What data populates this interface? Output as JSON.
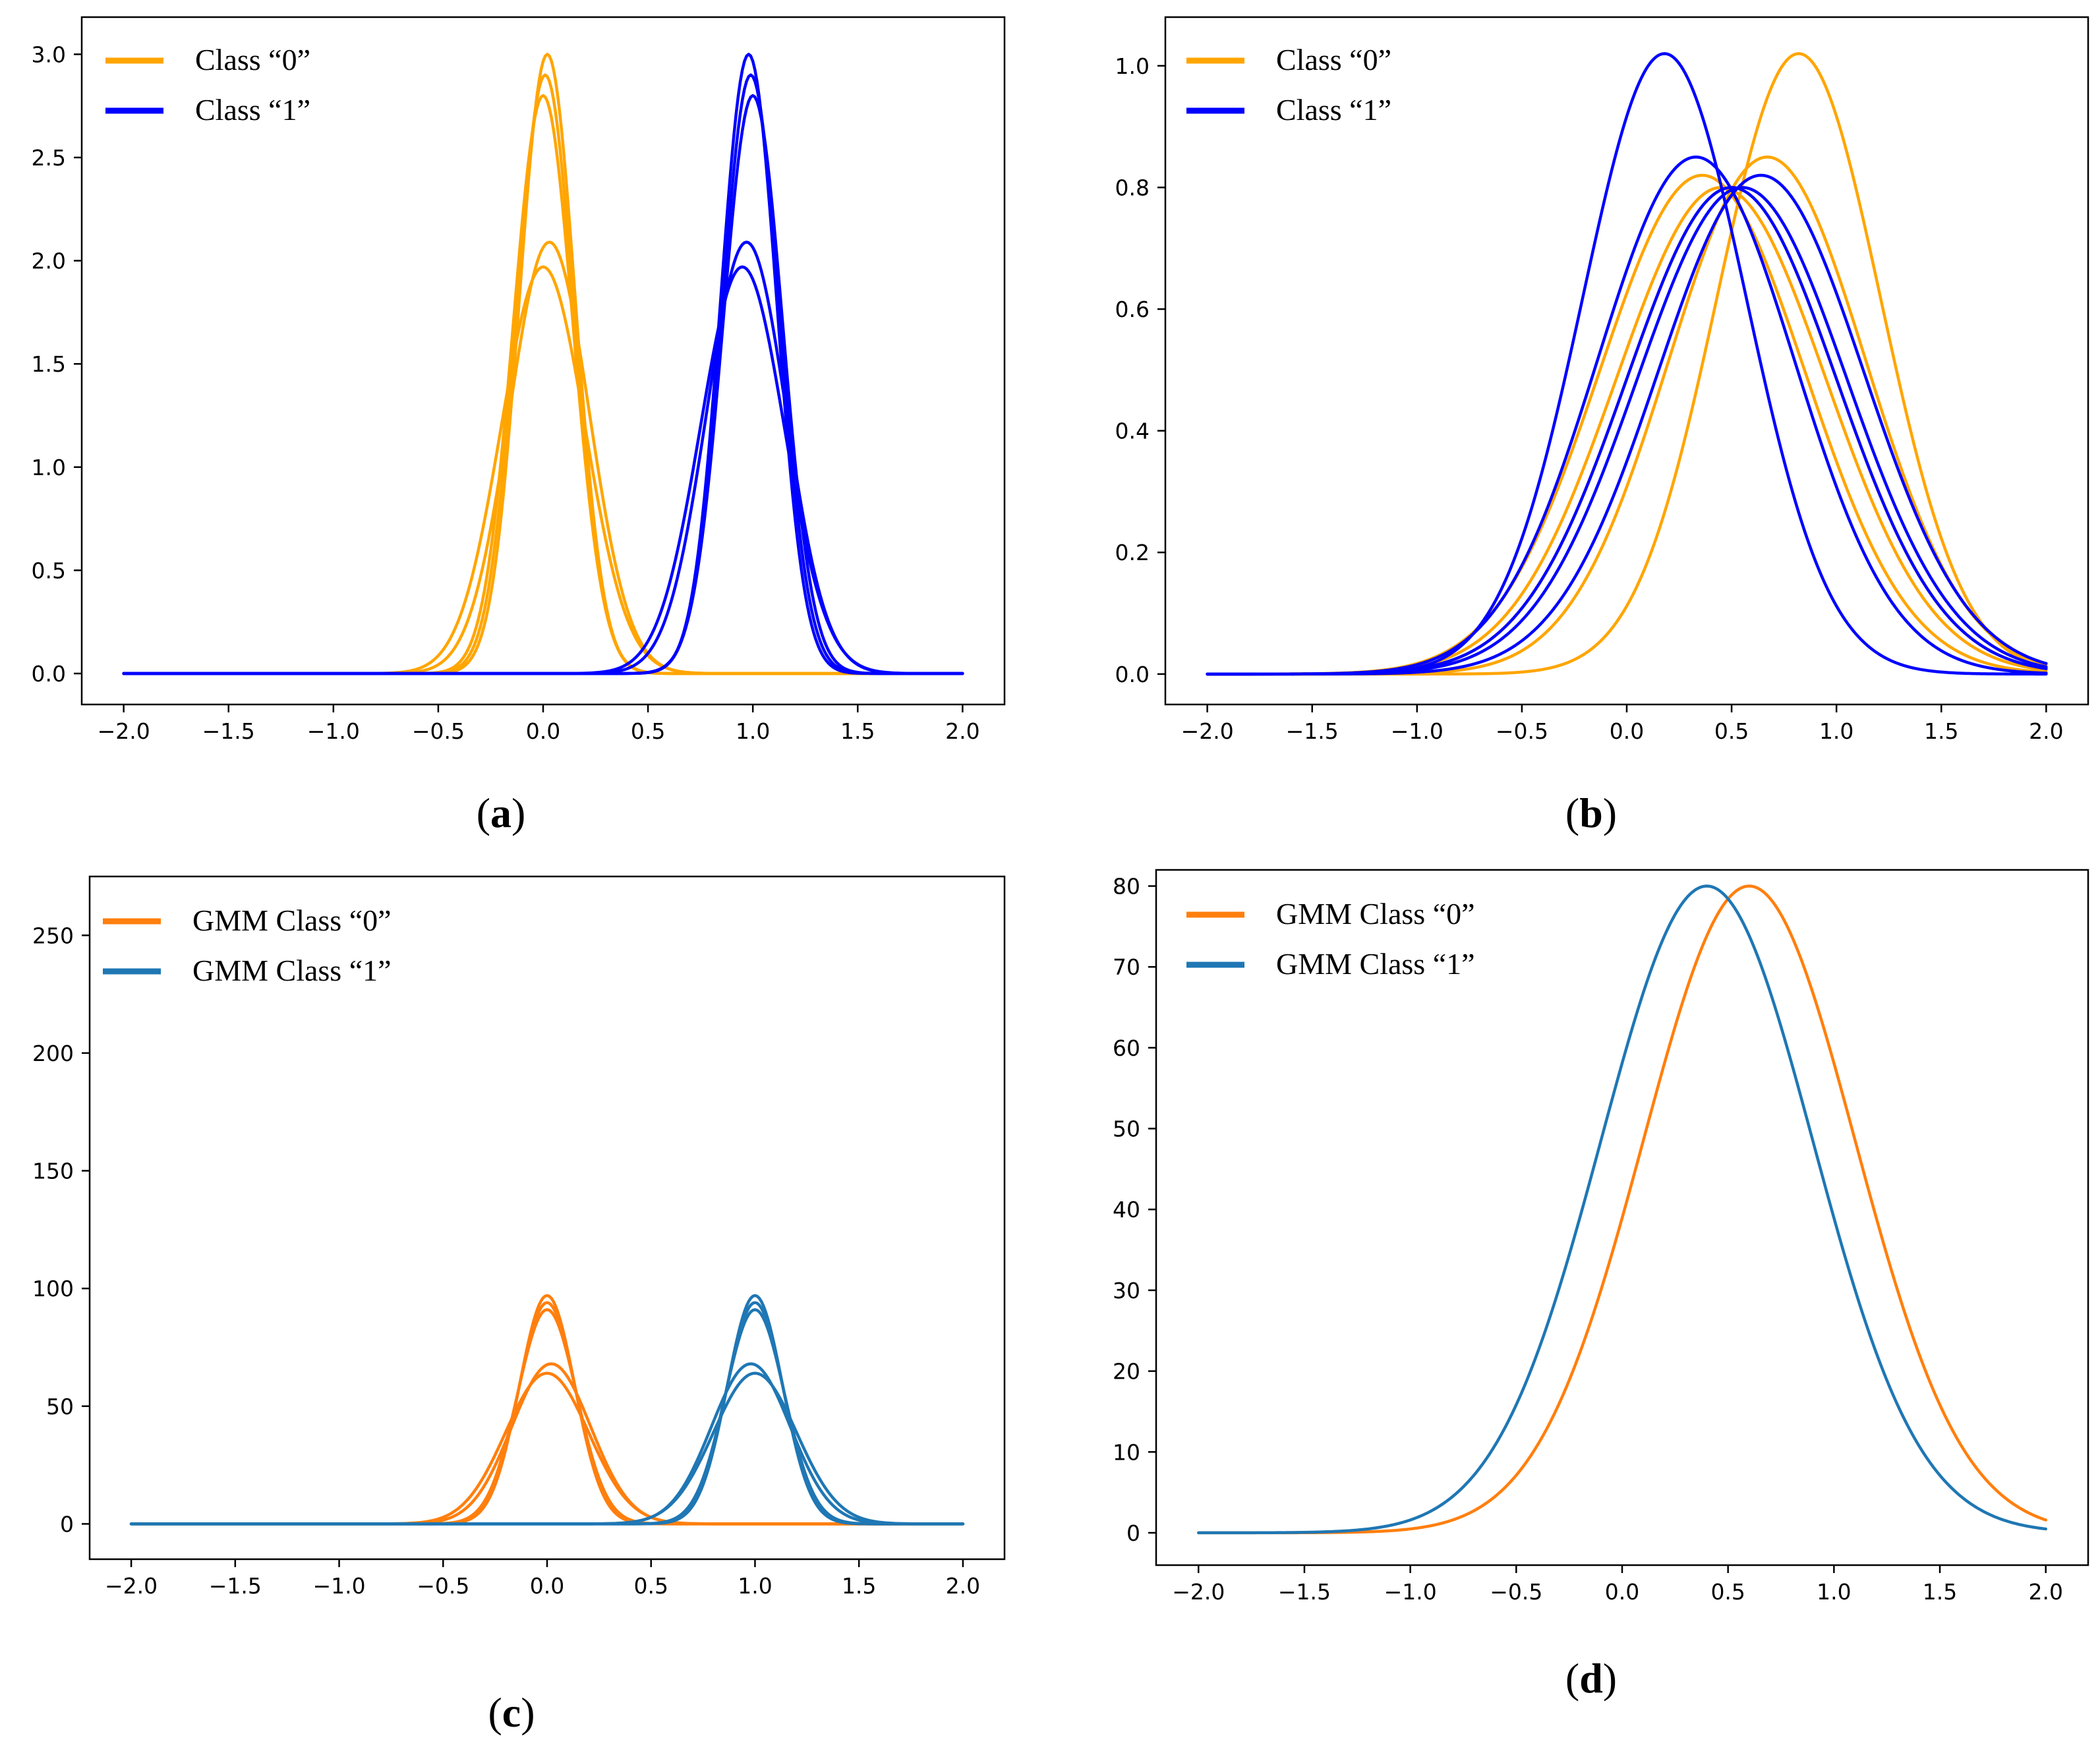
{
  "chart_data": [
    {
      "id": "a",
      "type": "line",
      "caption": "(a)",
      "xlim": [
        -2.2,
        2.2
      ],
      "ylim": [
        -0.15,
        3.18
      ],
      "xticks": [
        -2.0,
        -1.5,
        -1.0,
        -0.5,
        0.0,
        0.5,
        1.0,
        1.5,
        2.0
      ],
      "xtick_labels": [
        "−2.0",
        "−1.5",
        "−1.0",
        "−0.5",
        "0.0",
        "0.5",
        "1.0",
        "1.5",
        "2.0"
      ],
      "yticks": [
        0.0,
        0.5,
        1.0,
        1.5,
        2.0,
        2.5,
        3.0
      ],
      "ytick_labels": [
        "0.0",
        "0.5",
        "1.0",
        "1.5",
        "2.0",
        "2.5",
        "3.0"
      ],
      "legend": [
        {
          "label": "Class “0”",
          "color": "#ffa500"
        },
        {
          "label": "Class “1”",
          "color": "#0000ff"
        }
      ],
      "x_range": [
        -2.0,
        2.0
      ],
      "series": [
        {
          "name": "Class “0”",
          "color": "#ffa500",
          "components": [
            {
              "mean": 0.02,
              "sd": 0.133,
              "peak": 3.0
            },
            {
              "mean": 0.01,
              "sd": 0.137,
              "peak": 2.9
            },
            {
              "mean": 0.0,
              "sd": 0.142,
              "peak": 2.8
            },
            {
              "mean": 0.03,
              "sd": 0.19,
              "peak": 2.09
            },
            {
              "mean": 0.0,
              "sd": 0.2,
              "peak": 1.97
            }
          ]
        },
        {
          "name": "Class “1”",
          "color": "#0000ff",
          "components": [
            {
              "mean": 0.98,
              "sd": 0.133,
              "peak": 3.0
            },
            {
              "mean": 0.99,
              "sd": 0.137,
              "peak": 2.9
            },
            {
              "mean": 1.0,
              "sd": 0.142,
              "peak": 2.8
            },
            {
              "mean": 0.97,
              "sd": 0.19,
              "peak": 2.09
            },
            {
              "mean": 0.95,
              "sd": 0.2,
              "peak": 1.97
            }
          ]
        }
      ]
    },
    {
      "id": "b",
      "type": "line",
      "caption": "(b)",
      "xlim": [
        -2.2,
        2.2
      ],
      "ylim": [
        -0.05,
        1.08
      ],
      "xticks": [
        -2.0,
        -1.5,
        -1.0,
        -0.5,
        0.0,
        0.5,
        1.0,
        1.5,
        2.0
      ],
      "xtick_labels": [
        "−2.0",
        "−1.5",
        "−1.0",
        "−0.5",
        "0.0",
        "0.5",
        "1.0",
        "1.5",
        "2.0"
      ],
      "yticks": [
        0.0,
        0.2,
        0.4,
        0.6,
        0.8,
        1.0
      ],
      "ytick_labels": [
        "0.0",
        "0.2",
        "0.4",
        "0.6",
        "0.8",
        "1.0"
      ],
      "legend": [
        {
          "label": "Class “0”",
          "color": "#ffa500"
        },
        {
          "label": "Class “1”",
          "color": "#0000ff"
        }
      ],
      "x_range": [
        -2.0,
        2.0
      ],
      "series": [
        {
          "name": "Class “0”",
          "color": "#ffa500",
          "components": [
            {
              "mean": 0.82,
              "sd": 0.39,
              "peak": 1.02
            },
            {
              "mean": 0.67,
              "sd": 0.47,
              "peak": 0.85
            },
            {
              "mean": 0.36,
              "sd": 0.49,
              "peak": 0.82
            },
            {
              "mean": 0.45,
              "sd": 0.5,
              "peak": 0.8
            },
            {
              "mean": 0.5,
              "sd": 0.5,
              "peak": 0.8
            }
          ]
        },
        {
          "name": "Class “1”",
          "color": "#0000ff",
          "components": [
            {
              "mean": 0.18,
              "sd": 0.39,
              "peak": 1.02
            },
            {
              "mean": 0.33,
              "sd": 0.47,
              "peak": 0.85
            },
            {
              "mean": 0.64,
              "sd": 0.49,
              "peak": 0.82
            },
            {
              "mean": 0.55,
              "sd": 0.5,
              "peak": 0.8
            },
            {
              "mean": 0.5,
              "sd": 0.5,
              "peak": 0.8
            }
          ]
        }
      ]
    },
    {
      "id": "c",
      "type": "line",
      "caption": "(c)",
      "xlim": [
        -2.2,
        2.2
      ],
      "ylim": [
        -15,
        275
      ],
      "xticks": [
        -2.0,
        -1.5,
        -1.0,
        -0.5,
        0.0,
        0.5,
        1.0,
        1.5,
        2.0
      ],
      "xtick_labels": [
        "−2.0",
        "−1.5",
        "−1.0",
        "−0.5",
        "0.0",
        "0.5",
        "1.0",
        "1.5",
        "2.0"
      ],
      "yticks": [
        0,
        50,
        100,
        150,
        200,
        250
      ],
      "ytick_labels": [
        "0",
        "50",
        "100",
        "150",
        "200",
        "250"
      ],
      "legend": [
        {
          "label": "GMM Class “0”",
          "color": "#ff7f0e"
        },
        {
          "label": "GMM Class “1”",
          "color": "#1f77b4"
        }
      ],
      "x_range": [
        -2.0,
        2.0
      ],
      "series": [
        {
          "name": "GMM Class “0”",
          "color": "#ff7f0e",
          "components": [
            {
              "mean": 0.0,
              "sd": 0.133,
              "peak": 97
            },
            {
              "mean": 0.0,
              "sd": 0.137,
              "peak": 94
            },
            {
              "mean": 0.0,
              "sd": 0.142,
              "peak": 91
            },
            {
              "mean": 0.02,
              "sd": 0.19,
              "peak": 68
            },
            {
              "mean": 0.0,
              "sd": 0.2,
              "peak": 64
            }
          ]
        },
        {
          "name": "GMM Class “1”",
          "color": "#1f77b4",
          "components": [
            {
              "mean": 1.0,
              "sd": 0.133,
              "peak": 97
            },
            {
              "mean": 1.0,
              "sd": 0.137,
              "peak": 94
            },
            {
              "mean": 1.0,
              "sd": 0.142,
              "peak": 91
            },
            {
              "mean": 0.98,
              "sd": 0.19,
              "peak": 68
            },
            {
              "mean": 1.0,
              "sd": 0.2,
              "peak": 64
            }
          ]
        }
      ]
    },
    {
      "id": "d",
      "type": "line",
      "caption": "(d)",
      "xlim": [
        -2.2,
        2.2
      ],
      "ylim": [
        -4,
        82
      ],
      "xticks": [
        -2.0,
        -1.5,
        -1.0,
        -0.5,
        0.0,
        0.5,
        1.0,
        1.5,
        2.0
      ],
      "xtick_labels": [
        "−2.0",
        "−1.5",
        "−1.0",
        "−0.5",
        "0.0",
        "0.5",
        "1.0",
        "1.5",
        "2.0"
      ],
      "yticks": [
        0,
        10,
        20,
        30,
        40,
        50,
        60,
        70,
        80
      ],
      "ytick_labels": [
        "0",
        "10",
        "20",
        "30",
        "40",
        "50",
        "60",
        "70",
        "80"
      ],
      "legend": [
        {
          "label": "GMM Class “0”",
          "color": "#ff7f0e"
        },
        {
          "label": "GMM Class “1”",
          "color": "#1f77b4"
        }
      ],
      "x_range": [
        -2.0,
        2.0
      ],
      "series": [
        {
          "name": "GMM Class “0”",
          "color": "#ff7f0e",
          "components": [
            {
              "mean": 0.6,
              "sd": 0.5,
              "peak": 80
            }
          ]
        },
        {
          "name": "GMM Class “1”",
          "color": "#1f77b4",
          "components": [
            {
              "mean": 0.4,
              "sd": 0.5,
              "peak": 80
            }
          ]
        }
      ]
    }
  ]
}
